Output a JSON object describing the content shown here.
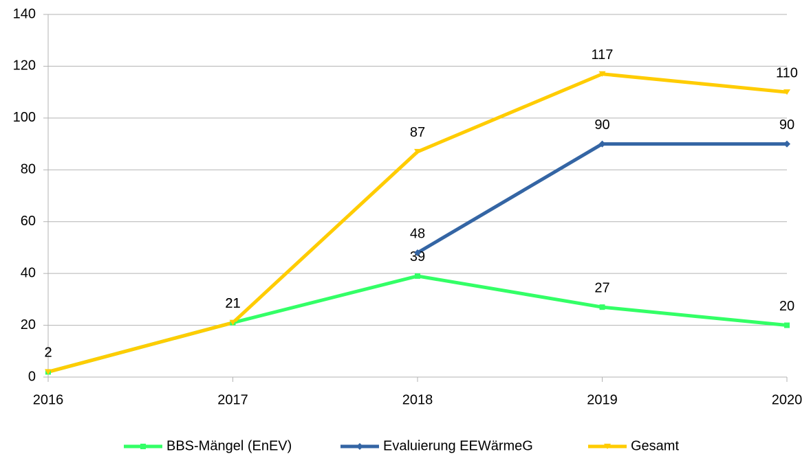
{
  "chart_data": {
    "type": "line",
    "categories": [
      "2016",
      "2017",
      "2018",
      "2019",
      "2020"
    ],
    "series": [
      {
        "name": "BBS-Mängel (EnEV)",
        "color": "#33ff66",
        "marker": "square",
        "values": [
          2,
          21,
          39,
          27,
          20
        ]
      },
      {
        "name": "Evaluierung EEWärmeG",
        "color": "#3465a4",
        "marker": "diamond",
        "values": [
          null,
          null,
          48,
          90,
          90
        ]
      },
      {
        "name": "Gesamt",
        "color": "#ffcc00",
        "marker": "triangle-down",
        "values": [
          2,
          21,
          87,
          117,
          110
        ]
      }
    ],
    "ylim": [
      0,
      140
    ],
    "yticks": [
      0,
      20,
      40,
      60,
      80,
      100,
      120,
      140
    ],
    "grid": true,
    "legend": "bottom"
  }
}
